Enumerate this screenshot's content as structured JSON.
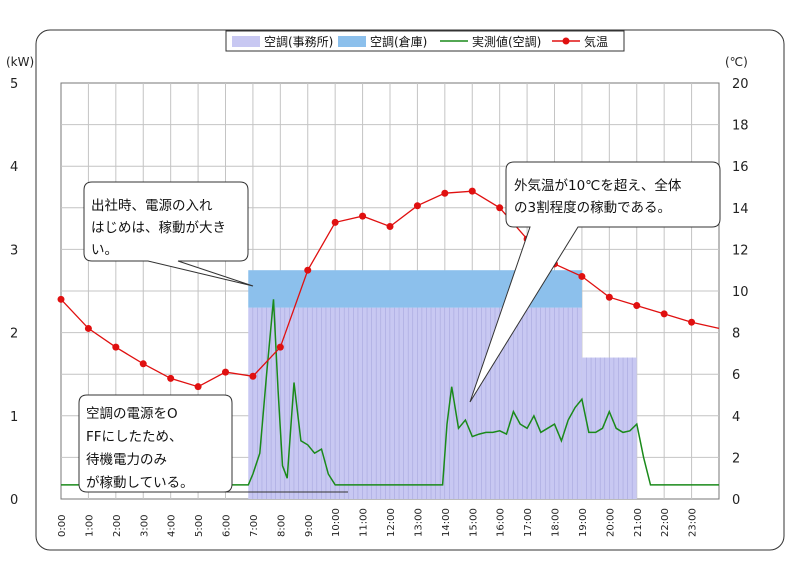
{
  "chart_data": {
    "type": "bar",
    "y_left_unit": "(kW)",
    "y_right_unit": "(℃)",
    "y_left_range": [
      0,
      5
    ],
    "y_left_ticks": [
      "0",
      "1",
      "2",
      "3",
      "4",
      "5"
    ],
    "y_right_range": [
      0,
      20
    ],
    "y_right_ticks": [
      "0",
      "2",
      "4",
      "6",
      "8",
      "10",
      "12",
      "14",
      "16",
      "18",
      "20"
    ],
    "x_range": [
      0,
      24
    ],
    "x_ticks": [
      "0:00",
      "1:00",
      "2:00",
      "3:00",
      "4:00",
      "5:00",
      "6:00",
      "7:00",
      "8:00",
      "9:00",
      "10:00",
      "11:00",
      "12:00",
      "13:00",
      "14:00",
      "15:00",
      "16:00",
      "17:00",
      "18:00",
      "19:00",
      "20:00",
      "21:00",
      "22:00",
      "23:00"
    ],
    "grid": true,
    "legend_position": "top",
    "legend": [
      {
        "label": "空調(事務所)",
        "kind": "bar",
        "color": "#c8c8f2"
      },
      {
        "label": "空調(倉庫)",
        "kind": "bar",
        "color": "#8cc0ec"
      },
      {
        "label": "実測値(空調)",
        "kind": "line",
        "color": "#1a8a1a"
      },
      {
        "label": "気温",
        "kind": "line-marker",
        "color": "#e01010"
      }
    ],
    "series": [
      {
        "name": "空調(事務所)",
        "axis": "left",
        "segments": [
          {
            "x_start": 6.83,
            "x_end": 19.0,
            "value": 2.3
          },
          {
            "x_start": 19.0,
            "x_end": 21.0,
            "value": 1.7
          }
        ]
      },
      {
        "name": "空調(倉庫)",
        "axis": "left",
        "segments": [
          {
            "x_start": 6.83,
            "x_end": 19.0,
            "value": 0.45
          }
        ]
      },
      {
        "name": "実測値(空調)",
        "axis": "left",
        "points": [
          [
            0,
            0.17
          ],
          [
            6.83,
            0.17
          ],
          [
            7.0,
            0.3
          ],
          [
            7.25,
            0.55
          ],
          [
            7.5,
            1.5
          ],
          [
            7.75,
            2.4
          ],
          [
            7.92,
            1.3
          ],
          [
            8.08,
            0.4
          ],
          [
            8.25,
            0.25
          ],
          [
            8.5,
            1.4
          ],
          [
            8.75,
            0.7
          ],
          [
            9.0,
            0.65
          ],
          [
            9.25,
            0.55
          ],
          [
            9.5,
            0.6
          ],
          [
            9.75,
            0.3
          ],
          [
            10.0,
            0.17
          ],
          [
            13.92,
            0.17
          ],
          [
            14.08,
            0.9
          ],
          [
            14.25,
            1.35
          ],
          [
            14.5,
            0.85
          ],
          [
            14.75,
            0.95
          ],
          [
            15.0,
            0.75
          ],
          [
            15.25,
            0.78
          ],
          [
            15.5,
            0.8
          ],
          [
            15.75,
            0.8
          ],
          [
            16.0,
            0.82
          ],
          [
            16.25,
            0.78
          ],
          [
            16.5,
            1.05
          ],
          [
            16.75,
            0.9
          ],
          [
            17.0,
            0.85
          ],
          [
            17.25,
            1.0
          ],
          [
            17.5,
            0.8
          ],
          [
            17.75,
            0.85
          ],
          [
            18.0,
            0.9
          ],
          [
            18.25,
            0.7
          ],
          [
            18.5,
            0.95
          ],
          [
            18.75,
            1.1
          ],
          [
            19.0,
            1.2
          ],
          [
            19.25,
            0.8
          ],
          [
            19.5,
            0.8
          ],
          [
            19.75,
            0.85
          ],
          [
            20.0,
            1.05
          ],
          [
            20.25,
            0.85
          ],
          [
            20.5,
            0.8
          ],
          [
            20.75,
            0.82
          ],
          [
            21.0,
            0.9
          ],
          [
            21.25,
            0.5
          ],
          [
            21.5,
            0.17
          ],
          [
            24.0,
            0.17
          ]
        ]
      },
      {
        "name": "気温",
        "axis": "right",
        "points": [
          [
            0,
            9.6
          ],
          [
            1,
            8.2
          ],
          [
            2,
            7.3
          ],
          [
            3,
            6.5
          ],
          [
            4,
            5.8
          ],
          [
            5,
            5.4
          ],
          [
            6,
            6.1
          ],
          [
            7,
            5.9
          ],
          [
            8,
            7.3
          ],
          [
            9,
            11.0
          ],
          [
            10,
            13.3
          ],
          [
            11,
            13.6
          ],
          [
            12,
            13.1
          ],
          [
            13,
            14.1
          ],
          [
            14,
            14.7
          ],
          [
            15,
            14.8
          ],
          [
            16,
            14.0
          ],
          [
            17,
            12.5
          ],
          [
            18,
            11.3
          ],
          [
            19,
            10.7
          ],
          [
            20,
            9.7
          ],
          [
            21,
            9.3
          ],
          [
            22,
            8.9
          ],
          [
            23,
            8.5
          ],
          [
            24,
            8.2
          ]
        ]
      }
    ],
    "annotations": [
      {
        "lines": [
          "出社時、電源の入れ",
          "はじめは、稼動が大き",
          "い。"
        ]
      },
      {
        "lines": [
          "外気温が10℃を超え、全体",
          "の3割程度の稼動である。"
        ]
      },
      {
        "lines": [
          "空調の電源をO",
          "FFにしたため、",
          "待機電力のみ",
          "が稼動している。"
        ]
      }
    ]
  }
}
